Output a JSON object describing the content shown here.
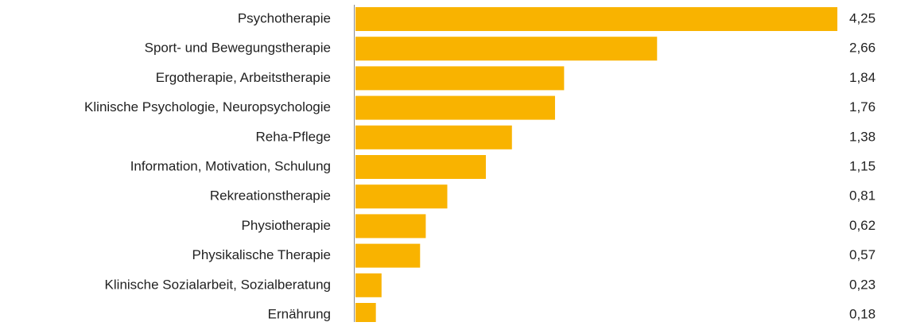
{
  "chart_data": {
    "type": "bar",
    "orientation": "horizontal",
    "categories": [
      "Psychotherapie",
      "Sport- und Bewegungstherapie",
      "Ergotherapie, Arbeitstherapie",
      "Klinische Psychologie, Neuropsychologie",
      "Reha-Pflege",
      "Information, Motivation, Schulung",
      "Rekreationstherapie",
      "Physiotherapie",
      "Physikalische Therapie",
      "Klinische Sozialarbeit, Sozialberatung",
      "Ernährung"
    ],
    "values": [
      4.25,
      2.66,
      1.84,
      1.76,
      1.38,
      1.15,
      0.81,
      0.62,
      0.57,
      0.23,
      0.18
    ],
    "value_labels": [
      "4,25",
      "2,66",
      "1,84",
      "1,76",
      "1,38",
      "1,15",
      "0,81",
      "0,62",
      "0,57",
      "0,23",
      "0,18"
    ],
    "color": "#f9b300"
  }
}
